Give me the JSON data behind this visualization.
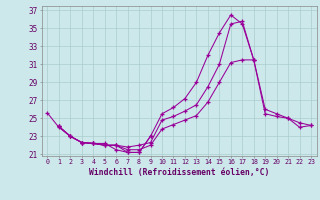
{
  "xlabel": "Windchill (Refroidissement éolien,°C)",
  "background_color": "#cce8ea",
  "grid_color": "#aacccc",
  "line_color": "#990099",
  "xlim": [
    -0.5,
    23.5
  ],
  "ylim": [
    20.8,
    37.5
  ],
  "yticks": [
    21,
    23,
    25,
    27,
    29,
    31,
    33,
    35,
    37
  ],
  "xticks": [
    0,
    1,
    2,
    3,
    4,
    5,
    6,
    7,
    8,
    9,
    10,
    11,
    12,
    13,
    14,
    15,
    16,
    17,
    18,
    19,
    20,
    21,
    22,
    23
  ],
  "curve1_x": [
    0,
    1,
    2,
    3,
    4,
    5,
    6,
    7,
    8,
    9,
    10,
    11,
    12,
    13,
    14,
    15,
    16,
    17,
    18
  ],
  "curve1_y": [
    25.6,
    24.0,
    23.0,
    22.3,
    22.2,
    22.2,
    21.5,
    21.2,
    21.2,
    23.0,
    25.5,
    26.2,
    27.2,
    29.0,
    32.0,
    34.5,
    36.5,
    35.5,
    31.5
  ],
  "curve2_x": [
    1,
    2,
    3,
    4,
    5,
    6,
    7,
    8,
    9,
    10,
    11,
    12,
    13,
    14,
    15,
    16,
    17,
    18,
    19,
    20,
    21,
    22,
    23
  ],
  "curve2_y": [
    24.1,
    23.0,
    22.3,
    22.2,
    22.0,
    22.0,
    21.8,
    22.0,
    22.3,
    24.8,
    25.2,
    25.8,
    26.5,
    28.5,
    31.0,
    35.5,
    35.8,
    31.5,
    26.0,
    25.5,
    25.0,
    24.5,
    24.2
  ],
  "curve3_x": [
    1,
    2,
    3,
    4,
    5,
    6,
    7,
    8,
    9,
    10,
    11,
    12,
    13,
    14,
    15,
    16,
    17,
    18,
    19,
    20,
    21,
    22,
    23
  ],
  "curve3_y": [
    24.1,
    23.0,
    22.3,
    22.2,
    22.0,
    22.0,
    21.5,
    21.5,
    22.0,
    23.8,
    24.3,
    24.8,
    25.3,
    26.8,
    29.0,
    31.2,
    31.5,
    31.5,
    25.5,
    25.2,
    25.0,
    24.0,
    24.2
  ],
  "curve4_x": [
    1,
    2,
    3,
    4,
    5,
    6,
    7,
    8,
    9
  ],
  "curve4_y": [
    24.1,
    23.0,
    22.3,
    22.2,
    22.0,
    22.0,
    21.2,
    21.2,
    23.0
  ]
}
